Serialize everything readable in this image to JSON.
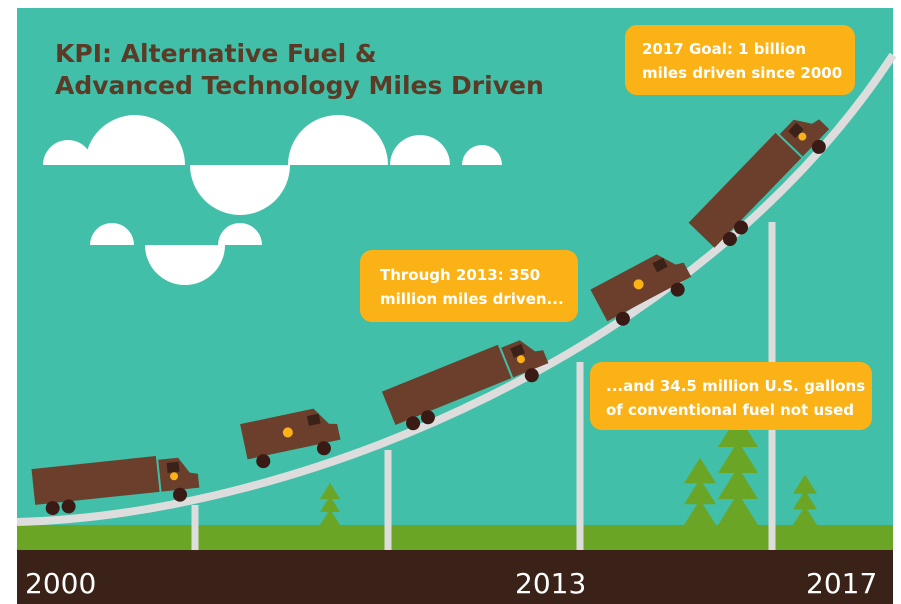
{
  "title": {
    "lines": [
      "KPI: Alternative Fuel &",
      "Advanced Technology Miles Driven"
    ]
  },
  "callouts": [
    {
      "lines": [
        "2017 Goal: 1 billion",
        "miles driven since 2000"
      ]
    },
    {
      "lines": [
        "Through 2013: 350",
        "million miles driven..."
      ]
    },
    {
      "lines": [
        "...and 34.5 million U.S. gallons",
        "of conventional fuel not used"
      ]
    }
  ],
  "timeline": {
    "labels": [
      "2000",
      "2013",
      "2017"
    ]
  }
}
